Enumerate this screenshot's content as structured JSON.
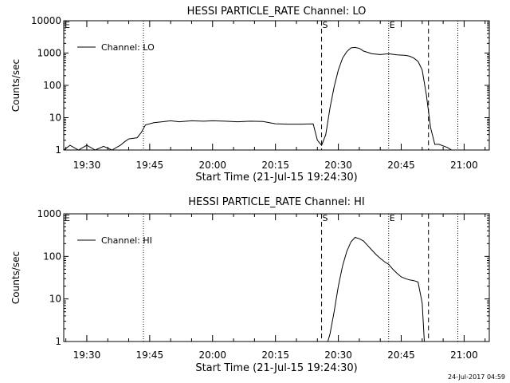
{
  "footer_stamp": "24-Jul-2017 04:59",
  "chart_data": [
    {
      "type": "line",
      "title": "HESSI PARTICLE_RATE Channel: LO",
      "xlabel": "Start Time (21-Jul-15 19:24:30)",
      "ylabel": "Counts/sec",
      "y_scale": "log",
      "ylim": [
        1,
        10000
      ],
      "y_ticks": [
        1,
        10,
        100,
        1000,
        10000
      ],
      "y_tick_labels": [
        "1",
        "10",
        "100",
        "1000",
        "10000"
      ],
      "xlim": [
        "19:24:30",
        "21:06:00"
      ],
      "x_ticks": [
        "19:30",
        "19:45",
        "20:00",
        "20:15",
        "20:30",
        "20:45",
        "21:00"
      ],
      "legend": {
        "position": "top-left",
        "entries": [
          "Channel: LO"
        ]
      },
      "markers": [
        {
          "label": "S",
          "time": "20:26:00",
          "style": "dashed"
        },
        {
          "label": "E",
          "time": "20:42:00",
          "style": "dotted"
        }
      ],
      "vertical_lines": [
        {
          "time": "19:43:30",
          "style": "dotted"
        },
        {
          "time": "20:51:30",
          "style": "dashed"
        },
        {
          "time": "20:58:30",
          "style": "dotted"
        }
      ],
      "series": [
        {
          "name": "Channel: LO",
          "x": [
            "19:24:30",
            "19:26",
            "19:28",
            "19:30",
            "19:32",
            "19:34",
            "19:36",
            "19:38",
            "19:39",
            "19:40",
            "19:41",
            "19:42",
            "19:43",
            "19:44",
            "19:46",
            "19:48",
            "19:50",
            "19:52",
            "19:55",
            "19:58",
            "20:00",
            "20:03",
            "20:06",
            "20:09",
            "20:12",
            "20:15",
            "20:18",
            "20:21",
            "20:24",
            "20:25",
            "20:26",
            "20:27",
            "20:28",
            "20:29",
            "20:30",
            "20:31",
            "20:32",
            "20:33",
            "20:34",
            "20:35",
            "20:36",
            "20:37",
            "20:38",
            "20:40",
            "20:42",
            "20:44",
            "20:46",
            "20:47",
            "20:48",
            "20:49",
            "20:50",
            "20:51",
            "20:52",
            "20:53",
            "20:54",
            "20:56",
            "20:57",
            "20:58"
          ],
          "values": [
            1,
            1.4,
            1,
            1.4,
            1,
            1.3,
            1,
            1.4,
            1.8,
            2.2,
            2.3,
            2.4,
            3.5,
            6,
            7,
            7.5,
            8,
            7.5,
            8,
            7.8,
            8,
            7.8,
            7.5,
            7.8,
            7.6,
            6.5,
            6.3,
            6.3,
            6.4,
            2,
            1.4,
            3,
            20,
            90,
            300,
            700,
            1100,
            1450,
            1500,
            1400,
            1150,
            1050,
            950,
            900,
            950,
            880,
            850,
            800,
            700,
            550,
            300,
            50,
            5,
            1.5,
            1.5,
            1.2,
            1,
            1
          ]
        }
      ]
    },
    {
      "type": "line",
      "title": "HESSI PARTICLE_RATE Channel: HI",
      "xlabel": "Start Time (21-Jul-15 19:24:30)",
      "ylabel": "Counts/sec",
      "y_scale": "log",
      "ylim": [
        1,
        1000
      ],
      "y_ticks": [
        1,
        10,
        100,
        1000
      ],
      "y_tick_labels": [
        "1",
        "10",
        "100",
        "1000"
      ],
      "xlim": [
        "19:24:30",
        "21:06:00"
      ],
      "x_ticks": [
        "19:30",
        "19:45",
        "20:00",
        "20:15",
        "20:30",
        "20:45",
        "21:00"
      ],
      "legend": {
        "position": "top-left",
        "entries": [
          "Channel: HI"
        ]
      },
      "markers": [
        {
          "label": "S",
          "time": "20:26:00",
          "style": "dashed"
        },
        {
          "label": "E",
          "time": "20:42:00",
          "style": "dotted"
        }
      ],
      "vertical_lines": [
        {
          "time": "19:43:30",
          "style": "dotted"
        },
        {
          "time": "20:51:30",
          "style": "dashed"
        },
        {
          "time": "20:58:30",
          "style": "dotted"
        }
      ],
      "series": [
        {
          "name": "Channel: HI",
          "x": [
            "20:27:30",
            "20:28",
            "20:29",
            "20:30",
            "20:31",
            "20:32",
            "20:33",
            "20:34",
            "20:35",
            "20:36",
            "20:37",
            "20:38",
            "20:39",
            "20:40",
            "20:41",
            "20:42",
            "20:43",
            "20:44",
            "20:45",
            "20:46",
            "20:47",
            "20:48",
            "20:49",
            "20:50",
            "20:50:30"
          ],
          "values": [
            1,
            1.5,
            5,
            20,
            60,
            130,
            220,
            280,
            260,
            230,
            180,
            140,
            110,
            90,
            75,
            65,
            50,
            40,
            33,
            30,
            28,
            27,
            25,
            8,
            1
          ]
        }
      ]
    }
  ]
}
